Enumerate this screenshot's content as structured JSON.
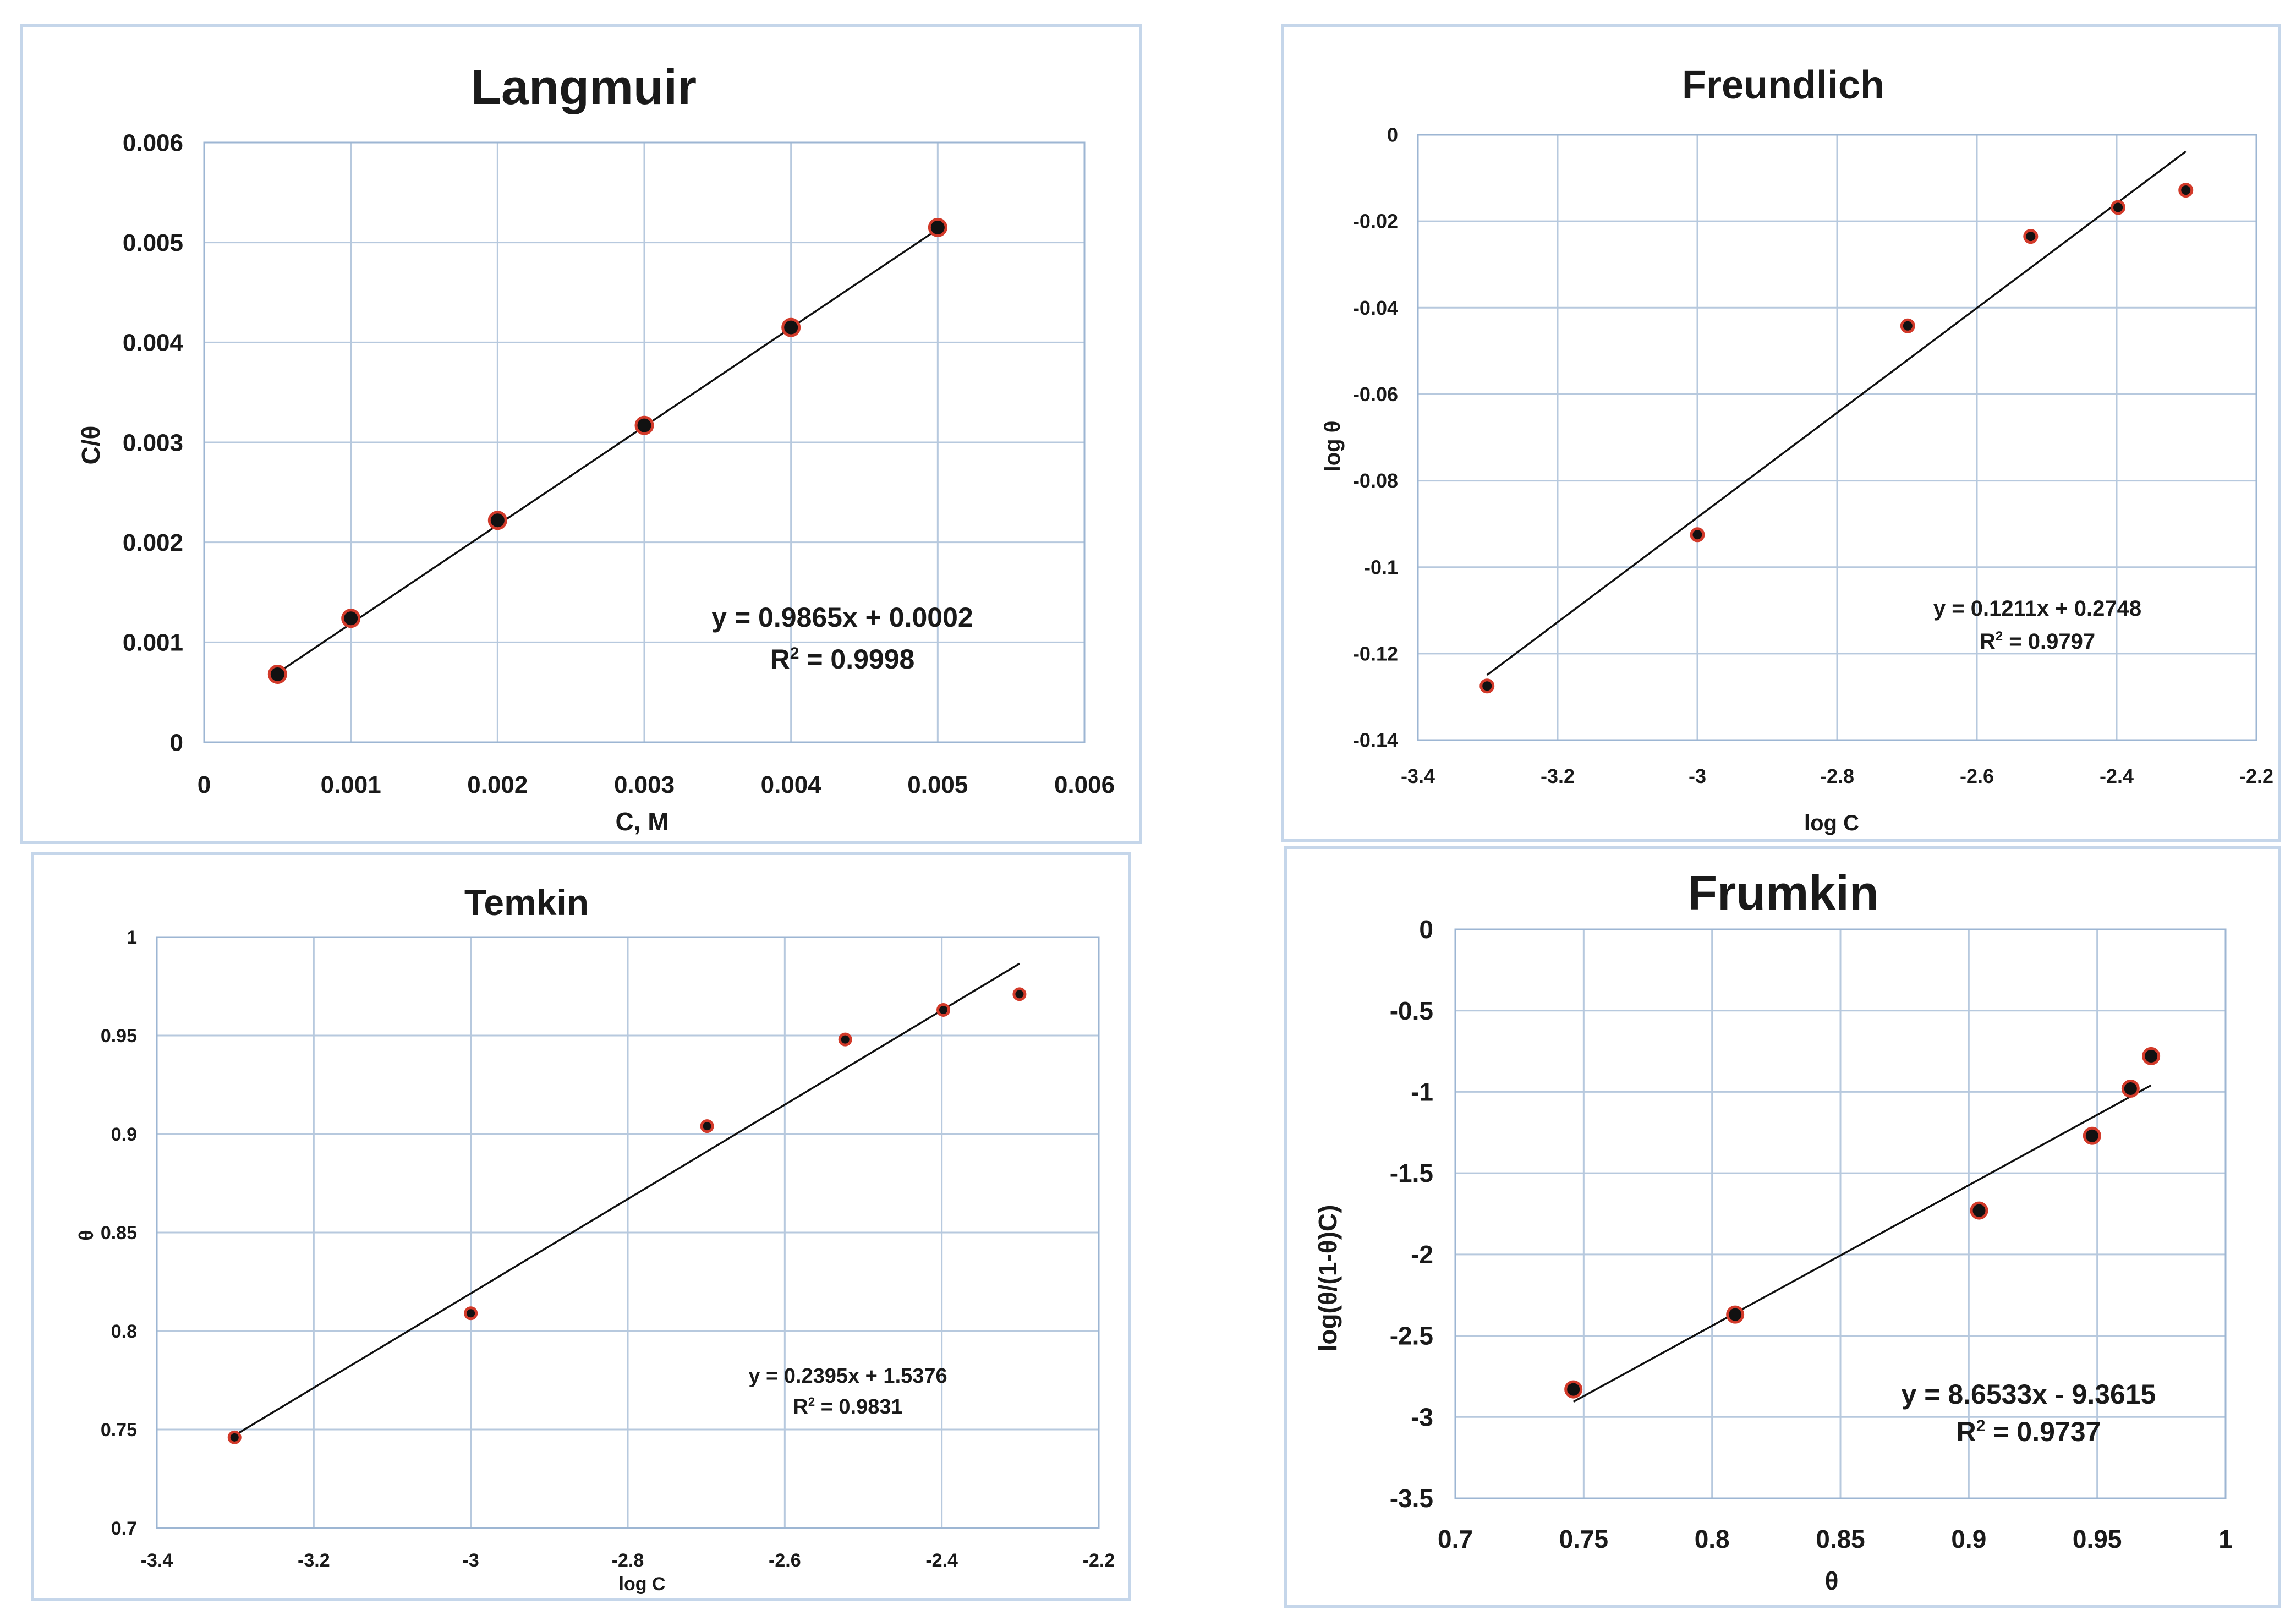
{
  "chart_data": [
    {
      "type": "scatter",
      "title": "Langmuir",
      "xlabel": "C, M",
      "ylabel": "C/θ",
      "xlim": [
        0,
        0.006
      ],
      "ylim": [
        0,
        0.006
      ],
      "xticks": [
        0,
        0.001,
        0.002,
        0.003,
        0.004,
        0.005,
        0.006
      ],
      "xtick_labels": [
        "0",
        "0.001",
        "0.002",
        "0.003",
        "0.004",
        "0.005",
        "0.006"
      ],
      "yticks": [
        0,
        0.001,
        0.002,
        0.003,
        0.004,
        0.005,
        0.006
      ],
      "ytick_labels": [
        "0",
        "0.001",
        "0.002",
        "0.003",
        "0.004",
        "0.005",
        "0.006"
      ],
      "grid": true,
      "x": [
        0.0005,
        0.001,
        0.002,
        0.003,
        0.004,
        0.005
      ],
      "y": [
        0.00068,
        0.00124,
        0.00222,
        0.00317,
        0.00415,
        0.00515
      ],
      "trendline": {
        "slope": 0.9865,
        "intercept": 0.0002,
        "x_range": [
          0.0005,
          0.005
        ]
      },
      "equation": "y = 0.9865x + 0.0002",
      "r2_prefix": "R",
      "r2_value": " = 0.9998"
    },
    {
      "type": "scatter",
      "title": "Freundlich",
      "xlabel": "log C",
      "ylabel": "log θ",
      "xlim": [
        -3.4,
        -2.2
      ],
      "ylim": [
        -0.14,
        0
      ],
      "xticks": [
        -3.4,
        -3.2,
        -3.0,
        -2.8,
        -2.6,
        -2.4,
        -2.2
      ],
      "xtick_labels": [
        "-3.4",
        "-3.2",
        "-3",
        "-2.8",
        "-2.6",
        "-2.4",
        "-2.2"
      ],
      "yticks": [
        0,
        -0.02,
        -0.04,
        -0.06,
        -0.08,
        -0.1,
        -0.12,
        -0.14
      ],
      "ytick_labels": [
        "0",
        "-0.02",
        "-0.04",
        "-0.06",
        "-0.08",
        "-0.1",
        "-0.12",
        "-0.14"
      ],
      "grid": true,
      "x": [
        -3.301,
        -3.0,
        -2.699,
        -2.523,
        -2.398,
        -2.301
      ],
      "y": [
        -0.1275,
        -0.0925,
        -0.0442,
        -0.0235,
        -0.0168,
        -0.0128
      ],
      "trendline": {
        "slope": 0.1211,
        "intercept": 0.2748,
        "x_range": [
          -3.301,
          -2.301
        ]
      },
      "equation": "y = 0.1211x + 0.2748",
      "r2_prefix": "R",
      "r2_value": " = 0.9797"
    },
    {
      "type": "scatter",
      "title": "Temkin",
      "xlabel": "log C",
      "ylabel": "θ",
      "xlim": [
        -3.4,
        -2.2
      ],
      "ylim": [
        0.7,
        1
      ],
      "xticks": [
        -3.4,
        -3.2,
        -3.0,
        -2.8,
        -2.6,
        -2.4,
        -2.2
      ],
      "xtick_labels": [
        "-3.4",
        "-3.2",
        "-3",
        "-2.8",
        "-2.6",
        "-2.4",
        "-2.2"
      ],
      "yticks": [
        0.7,
        0.75,
        0.8,
        0.85,
        0.9,
        0.95,
        1
      ],
      "ytick_labels": [
        "0.7",
        "0.75",
        "0.8",
        "0.85",
        "0.9",
        "0.95",
        "1"
      ],
      "grid": true,
      "x": [
        -3.301,
        -3.0,
        -2.699,
        -2.523,
        -2.398,
        -2.301
      ],
      "y": [
        0.746,
        0.809,
        0.904,
        0.948,
        0.963,
        0.971
      ],
      "trendline": {
        "slope": 0.2395,
        "intercept": 1.5376,
        "x_range": [
          -3.301,
          -2.301
        ]
      },
      "equation": "y = 0.2395x + 1.5376",
      "r2_prefix": "R",
      "r2_value": " = 0.9831"
    },
    {
      "type": "scatter",
      "title": "Frumkin",
      "xlabel": "θ",
      "ylabel": "log(θ/(1-θ)C)",
      "xlim": [
        0.7,
        1
      ],
      "ylim": [
        -3.5,
        0
      ],
      "xticks": [
        0.7,
        0.75,
        0.8,
        0.85,
        0.9,
        0.95,
        1
      ],
      "xtick_labels": [
        "0.7",
        "0.75",
        "0.8",
        "0.85",
        "0.9",
        "0.95",
        "1"
      ],
      "yticks": [
        0,
        -0.5,
        -1,
        -1.5,
        -2,
        -2.5,
        -3,
        -3.5
      ],
      "ytick_labels": [
        "0",
        "-0.5",
        "-1",
        "-1.5",
        "-2",
        "-2.5",
        "-3",
        "-3.5"
      ],
      "grid": true,
      "x": [
        0.746,
        0.809,
        0.904,
        0.948,
        0.963,
        0.971
      ],
      "y": [
        -2.83,
        -2.37,
        -1.73,
        -1.27,
        -0.98,
        -0.78
      ],
      "trendline": {
        "slope": 8.6533,
        "intercept": -9.3615,
        "x_range": [
          0.746,
          0.971
        ]
      },
      "equation": "y = 8.6533x - 9.3615",
      "r2_prefix": "R",
      "r2_value": " = 0.9737"
    }
  ]
}
